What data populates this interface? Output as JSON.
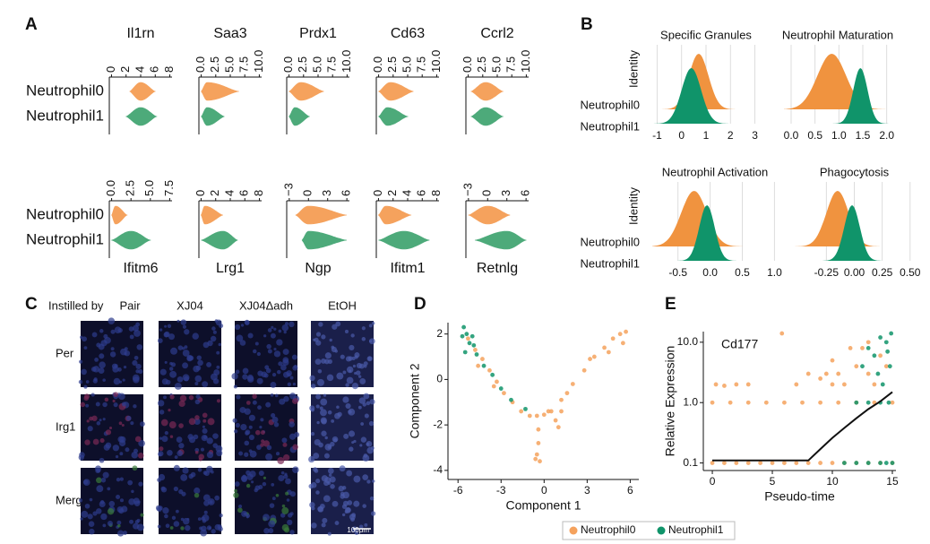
{
  "chart_data": [
    {
      "type": "violin",
      "panel": "A",
      "row_labels": [
        "Neutrophil0",
        "Neutrophil1"
      ],
      "colors": [
        "#f5a25d",
        "#4daa7a"
      ],
      "plots": [
        {
          "gene": "Il1rn",
          "xlim": [
            -0.3,
            8.3
          ],
          "xticks": [
            0,
            2,
            4,
            6,
            8
          ],
          "violins": [
            {
              "min": 2.5,
              "peak": 4,
              "max": 6
            },
            {
              "min": 2,
              "peak": 4,
              "max": 6.2
            }
          ]
        },
        {
          "gene": "Saa3",
          "xlim": [
            -0.4,
            10.4
          ],
          "xticks": [
            {
              "value": 0,
              "label": "0.0"
            },
            2.5,
            {
              "value": 5,
              "label": "5.0"
            },
            7.5,
            {
              "value": 10,
              "label": "10.0"
            }
          ],
          "violins": [
            {
              "min": 0,
              "peak": 1,
              "max": 6.5
            },
            {
              "min": 0,
              "peak": 1,
              "max": 4
            }
          ]
        },
        {
          "gene": "Prdx1",
          "xlim": [
            -0.4,
            10.4
          ],
          "xticks": [
            {
              "value": 0,
              "label": "0.0"
            },
            2.5,
            {
              "value": 5,
              "label": "5.0"
            },
            7.5,
            {
              "value": 10,
              "label": "10.0"
            }
          ],
          "violins": [
            {
              "min": 0,
              "peak": 2,
              "max": 6
            },
            {
              "min": 0,
              "peak": 1,
              "max": 3.5
            }
          ]
        },
        {
          "gene": "Cd63",
          "xlim": [
            -0.4,
            10.4
          ],
          "xticks": [
            {
              "value": 0,
              "label": "0.0"
            },
            2.5,
            {
              "value": 5,
              "label": "5.0"
            },
            7.5,
            {
              "value": 10,
              "label": "10.0"
            }
          ],
          "violins": [
            {
              "min": 0,
              "peak": 2,
              "max": 6
            },
            {
              "min": 0,
              "peak": 1.5,
              "max": 5
            }
          ]
        },
        {
          "gene": "Ccrl2",
          "xlim": [
            -0.4,
            10.4
          ],
          "xticks": [
            {
              "value": 0,
              "label": "0.0"
            },
            2.5,
            {
              "value": 5,
              "label": "5.0"
            },
            7.5,
            {
              "value": 10,
              "label": "10.0"
            }
          ],
          "violins": [
            {
              "min": 0.5,
              "peak": 3,
              "max": 6
            },
            {
              "min": 0.5,
              "peak": 3,
              "max": 6
            }
          ]
        },
        {
          "gene": "Ifitm6",
          "xlim": [
            -0.3,
            7.8
          ],
          "xticks": [
            {
              "value": 0,
              "label": "0.0"
            },
            2.5,
            {
              "value": 5,
              "label": "5.0"
            },
            7.5
          ],
          "violins": [
            {
              "min": 0,
              "peak": 0.5,
              "max": 2
            },
            {
              "min": 0,
              "peak": 2.5,
              "max": 5
            }
          ]
        },
        {
          "gene": "Lrg1",
          "xlim": [
            -0.3,
            8.3
          ],
          "xticks": [
            0,
            2,
            4,
            6,
            8
          ],
          "violins": [
            {
              "min": 0,
              "peak": 0.5,
              "max": 3
            },
            {
              "min": 0,
              "peak": 3,
              "max": 5
            }
          ]
        },
        {
          "gene": "Ngp",
          "xlim": [
            -3.4,
            6.4
          ],
          "xticks": [
            {
              "value": -3,
              "label": "−3"
            },
            0,
            3,
            6
          ],
          "violins": [
            {
              "min": -2,
              "peak": 0,
              "max": 6
            },
            {
              "min": -1,
              "peak": 0,
              "max": 6
            }
          ]
        },
        {
          "gene": "Ifitm1",
          "xlim": [
            -0.3,
            8.3
          ],
          "xticks": [
            0,
            2,
            4,
            6,
            8
          ],
          "violins": [
            {
              "min": 0,
              "peak": 1,
              "max": 4.5
            },
            {
              "min": 0,
              "peak": 3.5,
              "max": 7
            }
          ]
        },
        {
          "gene": "Retnlg",
          "xlim": [
            -3.4,
            6.4
          ],
          "xticks": [
            {
              "value": -3,
              "label": "−3"
            },
            0,
            3,
            6
          ],
          "violins": [
            {
              "min": -3,
              "peak": 0,
              "max": 3.5
            },
            {
              "min": -2,
              "peak": 3,
              "max": 6
            }
          ]
        }
      ]
    },
    {
      "type": "ridgeline",
      "panel": "B",
      "ylabel": "Identity",
      "groups": [
        "Neutrophil0",
        "Neutrophil1"
      ],
      "colors": [
        "#f0933f",
        "#10946a"
      ],
      "plots": [
        {
          "title": "Specific Granules",
          "xlim": [
            -1.2,
            3.2
          ],
          "xticks": [
            -1,
            0,
            1,
            2,
            3
          ],
          "series": [
            {
              "mean": 0.7,
              "sd": 0.4
            },
            {
              "mean": 0.4,
              "sd": 0.4
            }
          ]
        },
        {
          "title": "Neutrophil Maturation",
          "xlim": [
            -0.15,
            2.1
          ],
          "xticks": [
            {
              "value": 0,
              "label": "0.0"
            },
            0.5,
            {
              "value": 1,
              "label": "1.0"
            },
            1.5,
            {
              "value": 2,
              "label": "2.0"
            }
          ],
          "series": [
            {
              "mean": 0.85,
              "sd": 0.3
            },
            {
              "mean": 1.45,
              "sd": 0.15
            }
          ]
        },
        {
          "title": "Neutrophil  Activation",
          "xlim": [
            -0.9,
            1.05
          ],
          "xticks": [
            -0.5,
            {
              "value": 0,
              "label": "0.0"
            },
            0.5,
            {
              "value": 1,
              "label": "1.0"
            }
          ],
          "series": [
            {
              "mean": -0.25,
              "sd": 0.2
            },
            {
              "mean": -0.05,
              "sd": 0.12
            }
          ]
        },
        {
          "title": "Phagocytosis",
          "xlim": [
            -0.55,
            0.55
          ],
          "xticks": [
            -0.25,
            {
              "value": 0,
              "label": "0.00"
            },
            0.25,
            {
              "value": 0.5,
              "label": "0.50"
            }
          ],
          "series": [
            {
              "mean": -0.15,
              "sd": 0.1
            },
            {
              "mean": -0.02,
              "sd": 0.07
            }
          ]
        }
      ]
    },
    {
      "type": "scatter",
      "panel": "D",
      "xlabel": "Component 1",
      "ylabel": "Component 2",
      "xlim": [
        -6.7,
        6.6
      ],
      "ylim": [
        -4.4,
        2.5
      ],
      "xticks": [
        -6,
        -3,
        0,
        3,
        6
      ],
      "yticks": [
        -4,
        -2,
        0,
        2
      ],
      "legend": "bottom",
      "series": [
        {
          "name": "Neutrophil0",
          "color": "#f5a25d",
          "x": [
            0.5,
            1.2,
            2,
            2.8,
            3.5,
            4.2,
            4.8,
            5.3,
            5.7,
            5.5,
            4.5,
            3.2,
            1.6,
            -5.3,
            -4.8,
            -4.3,
            -3.8,
            -3.3,
            -2.8,
            -2.2,
            -1.6,
            -1,
            -4.6,
            -3.5,
            -0.5,
            0,
            0.3,
            -0.4,
            -0.4,
            -0.5,
            -0.3,
            -0.6,
            0.8,
            1,
            1.2
          ],
          "y": [
            -1.4,
            -0.9,
            -0.2,
            0.4,
            1,
            1.4,
            1.8,
            2,
            2.1,
            1.6,
            1.2,
            0.9,
            -0.6,
            1.8,
            1.3,
            0.9,
            0.4,
            -0.1,
            -0.6,
            -1,
            -1.4,
            -1.6,
            0.6,
            -0.3,
            -1.6,
            -1.55,
            -1.4,
            -2.2,
            -2.8,
            -3.3,
            -3.6,
            -3.5,
            -1.8,
            -2.1,
            -1.4
          ]
        },
        {
          "name": "Neutrophil1",
          "color": "#10946a",
          "x": [
            -5.6,
            -5.4,
            -5.2,
            -5.7,
            -5,
            -4.7,
            -4.2,
            -3.6,
            -3,
            -2.3,
            -1.3,
            -5.5,
            -4.9
          ],
          "y": [
            2.3,
            2,
            1.6,
            1.9,
            1.9,
            1.1,
            0.6,
            0.2,
            -0.4,
            -0.9,
            -1.3,
            1.2,
            1.5
          ]
        }
      ]
    },
    {
      "type": "scatter",
      "panel": "E",
      "annotation": "Cd177",
      "xlabel": "Pseudo-time",
      "ylabel": "Relative Expression",
      "log_y": true,
      "xlim": [
        -0.75,
        15.3
      ],
      "ylim": [
        0.075,
        15
      ],
      "xticks": [
        0,
        5,
        10,
        15
      ],
      "yticks": [
        0.1,
        {
          "value": 1,
          "label": "1.0"
        },
        {
          "value": 10,
          "label": "10.0"
        }
      ],
      "series": [
        {
          "color": "#f5a25d",
          "x": [
            0,
            1,
            2,
            3,
            4,
            5,
            6,
            7,
            8,
            9,
            10,
            11,
            12,
            13,
            14,
            15,
            0,
            1.5,
            3,
            4.5,
            6,
            7.5,
            9,
            10.5,
            12,
            13.5,
            15,
            0.3,
            1,
            2,
            3,
            5.8,
            7,
            8,
            9,
            10,
            10.5,
            11,
            12,
            12.5,
            13,
            13.5,
            14,
            14.5,
            11.5,
            13,
            10,
            9.5
          ],
          "y": [
            0.1,
            0.1,
            0.1,
            0.1,
            0.1,
            0.1,
            0.1,
            0.1,
            0.1,
            0.1,
            0.1,
            0.1,
            0.1,
            0.1,
            0.1,
            0.1,
            1,
            1,
            1,
            1,
            1,
            1,
            1,
            1,
            1,
            1,
            1,
            2,
            1.9,
            2,
            2,
            14,
            2,
            3,
            2.5,
            5,
            3,
            2,
            4,
            8,
            3,
            2,
            6,
            4,
            8,
            10,
            2,
            3
          ]
        },
        {
          "color": "#10946a",
          "x": [
            11,
            12,
            13,
            14,
            14.5,
            15,
            12,
            13,
            14,
            14.7,
            12.5,
            13,
            13.5,
            14,
            14.5,
            14.8,
            14.2,
            13.8,
            14.6,
            14.9
          ],
          "y": [
            0.1,
            0.1,
            0.1,
            0.1,
            0.1,
            0.1,
            1,
            1,
            1,
            1,
            4,
            8,
            6,
            12,
            10,
            4,
            2,
            3,
            7,
            14
          ]
        },
        {
          "type": "line",
          "color": "#111111",
          "x": [
            0,
            8,
            9,
            10,
            11,
            12,
            13,
            14,
            15
          ],
          "y": [
            0.11,
            0.11,
            0.17,
            0.26,
            0.38,
            0.55,
            0.78,
            1.05,
            1.5
          ]
        }
      ]
    }
  ],
  "image_panel": {
    "panel": "C",
    "header": "Instilled by",
    "columns": [
      "Pair",
      "XJ04",
      "XJ04Δadh",
      "EtOH"
    ],
    "rows": [
      "Per",
      "Irg1",
      "Merge"
    ],
    "scale_bar": "100μm"
  }
}
